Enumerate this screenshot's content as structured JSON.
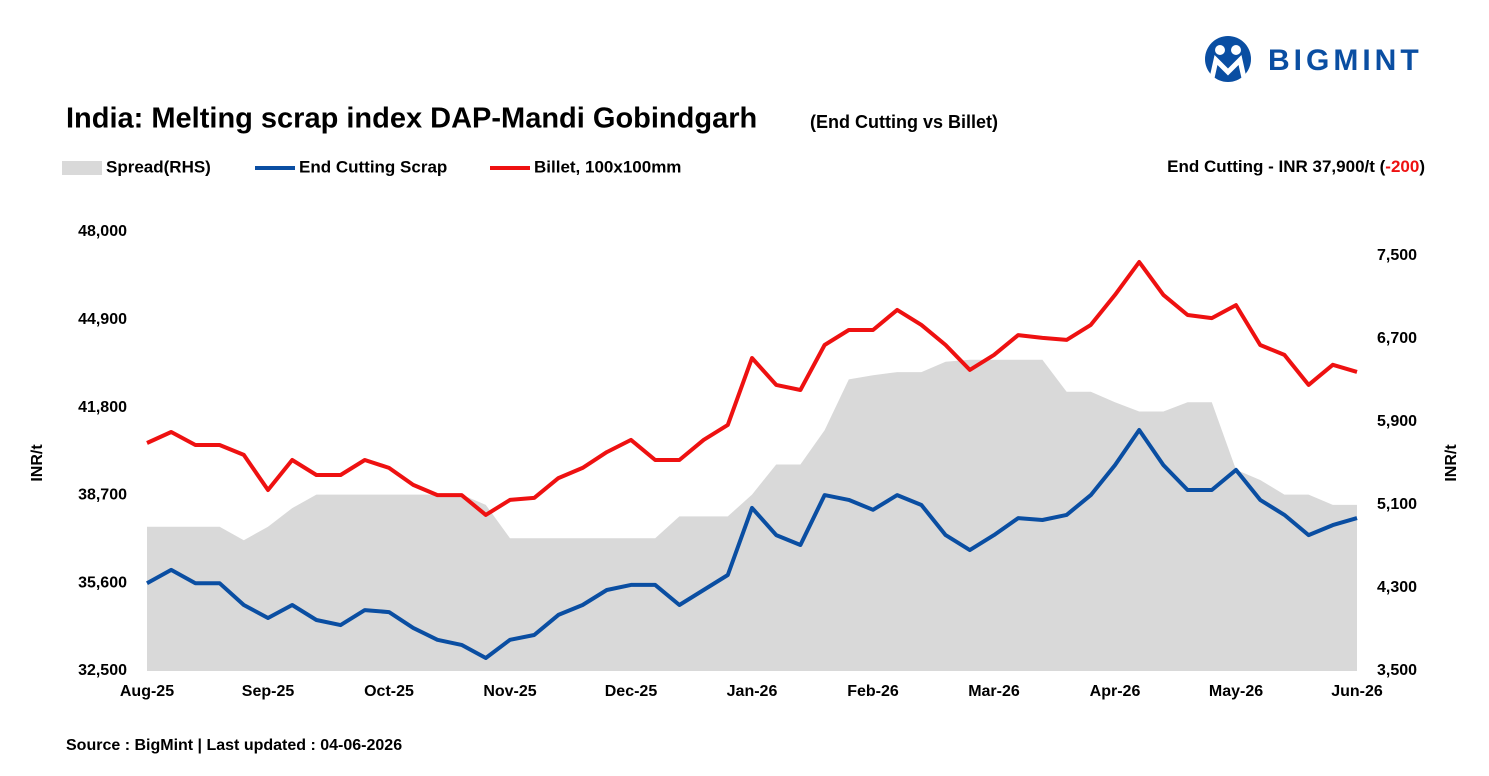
{
  "brand": "BIGMINT",
  "chart_data": {
    "type": "line",
    "title": "India: Melting scrap index DAP-Mandi Gobindgarh",
    "subtitle": "(End Cutting vs Billet)",
    "annotation": {
      "text": "End Cutting - INR 37,900/t (",
      "change": "-200",
      "close": ")"
    },
    "source": "Source : BigMint | Last updated : 04-06-2026",
    "y_label": "INR/t",
    "y2_label": "INR/t",
    "categories": [
      "Aug-25",
      null,
      null,
      null,
      null,
      "Sep-25",
      null,
      null,
      null,
      null,
      "Oct-25",
      null,
      null,
      null,
      null,
      "Nov-25",
      null,
      null,
      null,
      null,
      "Dec-25",
      null,
      null,
      null,
      null,
      "Jan-26",
      null,
      null,
      null,
      null,
      "Feb-26",
      null,
      null,
      null,
      null,
      "Mar-26",
      null,
      null,
      null,
      null,
      "Apr-26",
      null,
      null,
      null,
      null,
      "May-26",
      null,
      null,
      null,
      null,
      "Jun-26"
    ],
    "ylim": [
      32500,
      48000
    ],
    "yticks": [
      {
        "value": 32500,
        "label": "32,500"
      },
      {
        "value": 35600,
        "label": "35,600"
      },
      {
        "value": 38700,
        "label": "38,700"
      },
      {
        "value": 41800,
        "label": "41,800"
      },
      {
        "value": 44900,
        "label": "44,900"
      },
      {
        "value": 48000,
        "label": "48,000"
      }
    ],
    "y2lim": [
      3500,
      7730
    ],
    "y2ticks": [
      {
        "value": 3500,
        "label": "3,500"
      },
      {
        "value": 4300,
        "label": "4,300"
      },
      {
        "value": 5100,
        "label": "5,100"
      },
      {
        "value": 5900,
        "label": "5,900"
      },
      {
        "value": 6700,
        "label": "6,700"
      },
      {
        "value": 7500,
        "label": "7,500"
      }
    ],
    "series": [
      {
        "name": "Spread(RHS)",
        "kind": "area",
        "axis": "y2",
        "color": "#d9d9d9",
        "values": [
          4890,
          4890,
          4890,
          4890,
          4760,
          4890,
          5070,
          5200,
          5200,
          5200,
          5200,
          5200,
          5200,
          5200,
          5100,
          4780,
          4780,
          4780,
          4780,
          4780,
          4780,
          4780,
          4990,
          4990,
          4990,
          5200,
          5490,
          5490,
          5820,
          6310,
          6350,
          6380,
          6380,
          6480,
          6500,
          6500,
          6500,
          6500,
          6190,
          6190,
          6090,
          6000,
          6000,
          6090,
          6090,
          5440,
          5340,
          5200,
          5200,
          5100,
          5100
        ]
      },
      {
        "name": "End Cutting Scrap",
        "kind": "line",
        "color": "#0a4ea2",
        "values": [
          35600,
          36070,
          35600,
          35600,
          34830,
          34370,
          34830,
          34300,
          34120,
          34650,
          34580,
          34020,
          33600,
          33420,
          32960,
          33600,
          33770,
          34480,
          34830,
          35360,
          35540,
          35540,
          34830,
          35360,
          35890,
          38260,
          37300,
          36950,
          38710,
          38540,
          38190,
          38710,
          38360,
          37300,
          36770,
          37300,
          37900,
          37830,
          38010,
          38710,
          39770,
          41010,
          39770,
          38890,
          38890,
          39600,
          38540,
          38010,
          37300,
          37650,
          37900
        ]
      },
      {
        "name": "Billet, 100x100mm",
        "kind": "line",
        "color": "#ee1111",
        "values": [
          40550,
          40940,
          40480,
          40480,
          40130,
          38890,
          39950,
          39420,
          39420,
          39950,
          39670,
          39070,
          38710,
          38710,
          38010,
          38540,
          38610,
          39310,
          39670,
          40230,
          40660,
          39950,
          39950,
          40660,
          41190,
          43550,
          42600,
          42420,
          44010,
          44540,
          44540,
          45250,
          44720,
          44010,
          43130,
          43660,
          44360,
          44260,
          44190,
          44720,
          45780,
          46940,
          45780,
          45070,
          44960,
          45420,
          44010,
          43660,
          42600,
          43310,
          43060
        ]
      }
    ]
  }
}
